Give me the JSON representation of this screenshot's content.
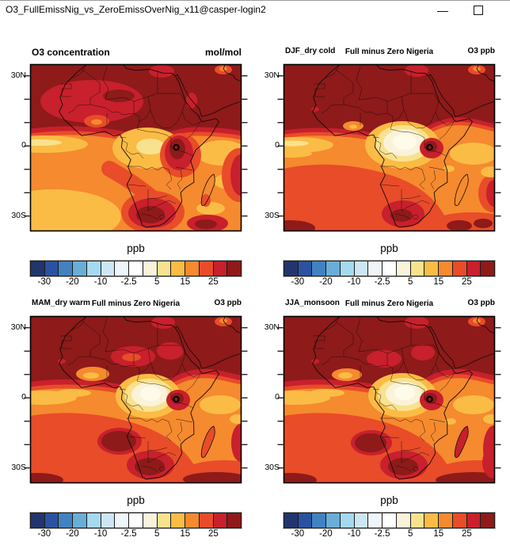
{
  "window": {
    "title": "O3_FullEmissNig_vs_ZeroEmissOverNig_x11@casper-login2"
  },
  "axis": {
    "lat_labels": [
      "30N",
      "0",
      "30S"
    ]
  },
  "colorbar": {
    "unit": "ppb",
    "tick_labels": [
      "-30",
      "-20",
      "-10",
      "-2.5",
      "5",
      "15",
      "25"
    ],
    "levels": [
      -30,
      -25,
      -20,
      -15,
      -10,
      -5,
      -2.5,
      2.5,
      5,
      10,
      15,
      20,
      25,
      30
    ],
    "colors": [
      "#22356e",
      "#2a52a0",
      "#4382c1",
      "#69aed6",
      "#a5d9ef",
      "#cde6f5",
      "#eef6fb",
      "#ffffff",
      "#faf3d9",
      "#f9e28e",
      "#fbbc45",
      "#f58a2e",
      "#e84c29",
      "#c8202c",
      "#8e1a1a"
    ]
  },
  "panels": [
    {
      "left_title": "O3 concentration",
      "center_title": "",
      "right_title": "mol/mol"
    },
    {
      "left_title": "DJF_dry cold",
      "center_title": "Full minus Zero Nigeria",
      "right_title": "O3 ppb"
    },
    {
      "left_title": "MAM_dry warm",
      "center_title": "Full minus Zero Nigeria",
      "right_title": "O3 ppb"
    },
    {
      "left_title": "JJA_monsoon",
      "center_title": "Full minus Zero Nigeria",
      "right_title": "O3 ppb"
    }
  ],
  "chart_data": [
    {
      "type": "heatmap",
      "subtype": "filled_contour_map",
      "title": "O3 concentration",
      "units_annotation": "mol/mol",
      "colorbar_unit": "ppb",
      "region": "Africa with Arabian Peninsula and Madagascar",
      "lat_tick_labels": [
        "30N",
        "0",
        "30S"
      ],
      "lat_tick_interval_deg": 10,
      "approx_lat_range": [
        -35,
        35
      ],
      "approx_lon_range": [
        -30,
        61
      ],
      "levels": [
        -30,
        -25,
        -20,
        -15,
        -10,
        -5,
        -2.5,
        2.5,
        5,
        10,
        15,
        20,
        25,
        30
      ],
      "palette_hex": [
        "#22356e",
        "#2a52a0",
        "#4382c1",
        "#69aed6",
        "#a5d9ef",
        "#cde6f5",
        "#eef6fb",
        "#ffffff",
        "#faf3d9",
        "#f9e28e",
        "#fbbc45",
        "#f58a2e",
        "#e84c29",
        "#c8202c",
        "#8e1a1a"
      ],
      "pattern_summary": "Highest band (>30) over all of North Africa, Sahel and Arabia; bright 25-30 region over Mauritania/Mali/Niger; sharp drop near 5N to 15-20 over equatorial Atlantic; 10-15 gold minimum over Congo basin and SE Atlantic; >30 maximum around Lake Victoria/Tanzania and over interior South Africa; 20-25 band along SW Indian Ocean edge."
    },
    {
      "type": "heatmap",
      "subtype": "filled_contour_map",
      "title": "DJF_dry cold — Full minus Zero Nigeria",
      "units_annotation": "O3 ppb",
      "colorbar_unit": "ppb",
      "region": "Africa with Arabian Peninsula and Madagascar",
      "lat_tick_labels": [
        "30N",
        "0",
        "30S"
      ],
      "lat_tick_interval_deg": 10,
      "approx_lat_range": [
        -35,
        35
      ],
      "approx_lon_range": [
        -30,
        61
      ],
      "levels": [
        -30,
        -25,
        -20,
        -15,
        -10,
        -5,
        -2.5,
        2.5,
        5,
        10,
        15,
        20,
        25,
        30
      ],
      "palette_hex": [
        "#22356e",
        "#2a52a0",
        "#4382c1",
        "#69aed6",
        "#a5d9ef",
        "#cde6f5",
        "#eef6fb",
        "#ffffff",
        "#faf3d9",
        "#f9e28e",
        "#fbbc45",
        "#f58a2e",
        "#e84c29",
        "#c8202c",
        "#8e1a1a"
      ],
      "pattern_summary": "Uniform >30 north of about 8N; cream/white 2.5-5 minimum centered on the Congo basin ringed by 5-10 and 10-15; 15-20 over tropical Atlantic with 10-15 streaks at the equator; >30 spot at Lake Victoria; 20-25 over the southern interior with >30 patches over South Africa, the SW corner and south of Madagascar; 15-20 with 10-15 patches over western Indian Ocean."
    },
    {
      "type": "heatmap",
      "subtype": "filled_contour_map",
      "title": "MAM_dry warm — Full minus Zero Nigeria",
      "units_annotation": "O3 ppb",
      "colorbar_unit": "ppb",
      "region": "Africa with Arabian Peninsula and Madagascar",
      "lat_tick_labels": [
        "30N",
        "0",
        "30S"
      ],
      "lat_tick_interval_deg": 10,
      "approx_lat_range": [
        -35,
        35
      ],
      "approx_lon_range": [
        -30,
        61
      ],
      "levels": [
        -30,
        -25,
        -20,
        -15,
        -10,
        -5,
        -2.5,
        2.5,
        5,
        10,
        15,
        20,
        25,
        30
      ],
      "palette_hex": [
        "#22356e",
        "#2a52a0",
        "#4382c1",
        "#69aed6",
        "#a5d9ef",
        "#cde6f5",
        "#eef6fb",
        "#ffffff",
        "#faf3d9",
        "#f9e28e",
        "#fbbc45",
        "#f58a2e",
        "#e84c29",
        "#c8202c",
        "#8e1a1a"
      ],
      "pattern_summary": "Same layout as DJF but with 25-30 patches over Chad/Niger and Sudan inside the >30 northern field, 10-15 gold spots along the Guinea coast, a slightly smaller Congo-basin cream minimum, broader 20-25 southern region with >30 patches offshore Namibia, over South Africa, south of Madagascar and in the SW corner."
    },
    {
      "type": "heatmap",
      "subtype": "filled_contour_map",
      "title": "JJA_monsoon — Full minus Zero Nigeria",
      "units_annotation": "O3 ppb",
      "colorbar_unit": "ppb",
      "region": "Africa with Arabian Peninsula and Madagascar",
      "lat_tick_labels": [
        "30N",
        "0",
        "30S"
      ],
      "lat_tick_interval_deg": 10,
      "approx_lat_range": [
        -35,
        35
      ],
      "approx_lon_range": [
        -30,
        61
      ],
      "levels": [
        -30,
        -25,
        -20,
        -15,
        -10,
        -5,
        -2.5,
        2.5,
        5,
        10,
        15,
        20,
        25,
        30
      ],
      "palette_hex": [
        "#22356e",
        "#2a52a0",
        "#4382c1",
        "#69aed6",
        "#a5d9ef",
        "#cde6f5",
        "#eef6fb",
        "#ffffff",
        "#faf3d9",
        "#f9e28e",
        "#fbbc45",
        "#f58a2e",
        "#e84c29",
        "#c8202c",
        "#8e1a1a"
      ],
      "pattern_summary": "Very similar to MAM: >30 across the north with 25-30 interior patches, cream 2.5-5 Congo minimum, >30 Lake Victoria spot, 20-25 southern belt with >30 patches toward South Africa, the SE edge and south of Madagascar; 15-20 with 10-15 patches over the western Indian Ocean."
    }
  ]
}
